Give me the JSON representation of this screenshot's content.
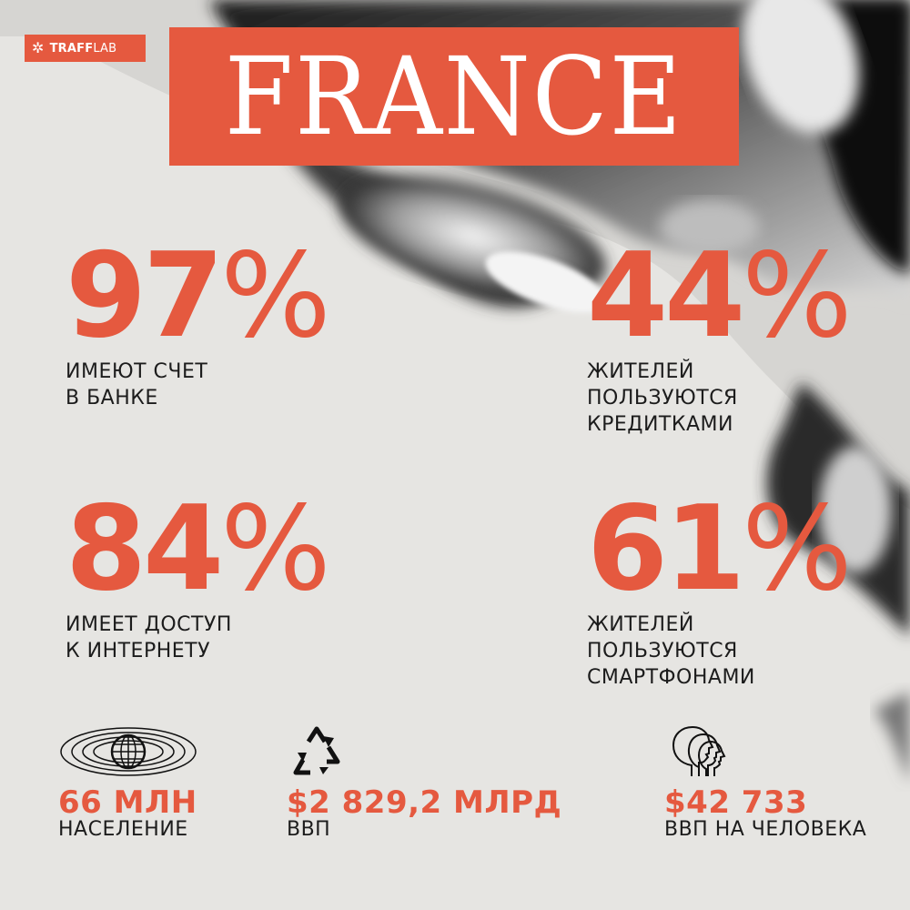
{
  "brand": {
    "logo_bold": "TRAFF",
    "logo_light": "LAB",
    "accent": "#e5593f",
    "logo_icon": "snowflake-icon"
  },
  "title": "FRANCE",
  "stats": [
    {
      "number": "97",
      "percent": "%",
      "line1": "ИМЕЮТ СЧЕТ",
      "line2": "В БАНКЕ",
      "line3": ""
    },
    {
      "number": "44",
      "percent": "%",
      "line1": "ЖИТЕЛЕЙ",
      "line2": "ПОЛЬЗУЮТСЯ",
      "line3": "КРЕДИТКАМИ"
    },
    {
      "number": "84",
      "percent": "%",
      "line1": "ИМЕЕТ ДОСТУП",
      "line2": "К ИНТЕРНЕТУ",
      "line3": ""
    },
    {
      "number": "61",
      "percent": "%",
      "line1": "ЖИТЕЛЕЙ",
      "line2": "ПОЛЬЗУЮТСЯ",
      "line3": "СМАРТФОНАМИ"
    }
  ],
  "footer": [
    {
      "icon": "globe-icon",
      "value": "66 МЛН",
      "caption": "НАСЕЛЕНИЕ"
    },
    {
      "icon": "recycle-icon",
      "value": "$2 829,2 МЛРД",
      "caption": "ВВП"
    },
    {
      "icon": "heads-profile-icon",
      "value": "$42 733",
      "caption": "ВВП НА ЧЕЛОВЕКА"
    }
  ]
}
